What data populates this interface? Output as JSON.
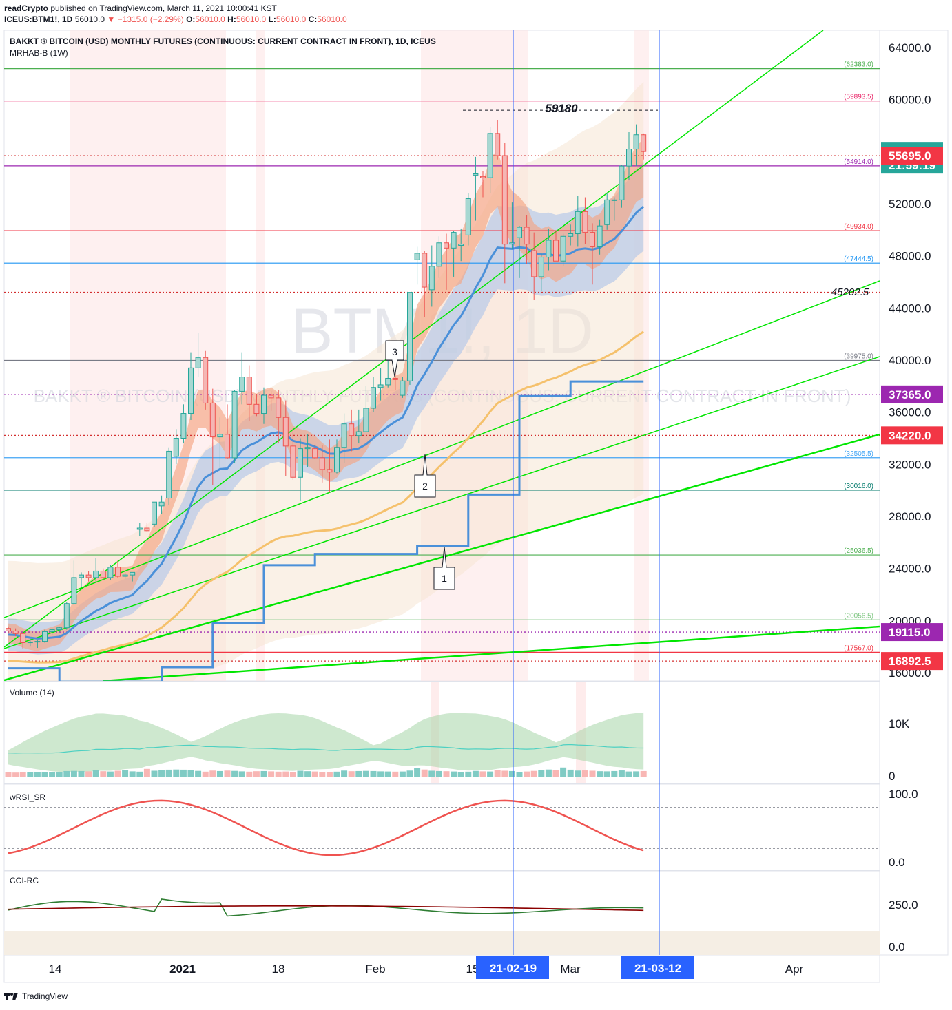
{
  "header": {
    "publisher": "readCrypto",
    "published_text": "published on TradingView.com, March 11, 2021 10:00:41 KST",
    "symbol_line": "ICEUS:BTM1!, 1D",
    "last": "56010.0",
    "change": "−1315.0 (−2.29%)",
    "o_label": "O:",
    "o_val": "56010.0",
    "h_label": "H:",
    "h_val": "56010.0",
    "l_label": "L:",
    "l_val": "56010.0",
    "c_label": "C:",
    "c_val": "56010.0"
  },
  "chart": {
    "legend_title": "BAKKT ® BITCOIN (USD) MONTHLY FUTURES (CONTINUOUS: CURRENT CONTRACT IN FRONT), 1D, ICEUS",
    "legend_indicator": "MRHAB-B (1W)",
    "watermark_symbol": "BTM1!, 1D",
    "watermark_desc": "BAKKT ® BITCOIN (USD) MONTHLY FUTURES (CONTINUOUS: CURRENT CONTRACT IN FRONT)",
    "annotation_top": "59180",
    "annotation_mid": "45202.5",
    "callouts": [
      "1",
      "2",
      "3"
    ]
  },
  "chart_data": {
    "type": "candlestick",
    "y_range": [
      15300,
      65000
    ],
    "y_ticks": [
      "64000.0",
      "60000.0",
      "52000.0",
      "48000.0",
      "44000.0",
      "40000.0",
      "36000.0",
      "32000.0",
      "28000.0",
      "24000.0",
      "20000.0",
      "16000.0"
    ],
    "y_tick_values": [
      64000,
      60000,
      52000,
      48000,
      44000,
      40000,
      36000,
      32000,
      28000,
      24000,
      20000,
      16000
    ],
    "x_labels": [
      "14",
      "2021",
      "18",
      "Feb",
      "15",
      "Mar",
      "Apr"
    ],
    "x_marker_labels": [
      "21-02-19",
      "21-03-12"
    ],
    "price_labels": [
      {
        "text": "56010.0",
        "sub": "21:59:19",
        "value": 56010,
        "color": "#26a69a"
      },
      {
        "text": "55695.0",
        "value": 55695,
        "color": "#f23645"
      },
      {
        "text": "37365.0",
        "value": 37365,
        "color": "#9c27b0"
      },
      {
        "text": "34220.0",
        "value": 34220,
        "color": "#f23645"
      },
      {
        "text": "19115.0",
        "value": 19115,
        "color": "#9c27b0"
      },
      {
        "text": "16892.5",
        "value": 16892.5,
        "color": "#f23645"
      }
    ],
    "hlines": [
      {
        "label": "(62383.0)",
        "value": 62383,
        "color": "#4caf50"
      },
      {
        "label": "(59893.5)",
        "value": 59893.5,
        "color": "#e91e63"
      },
      {
        "label": "(54914.0)",
        "value": 54914,
        "color": "#9c27b0"
      },
      {
        "label": "(49934.0)",
        "value": 49934,
        "color": "#f23645"
      },
      {
        "label": "(47444.5)",
        "value": 47444.5,
        "color": "#2196f3"
      },
      {
        "label": "(39975.0)",
        "value": 39975,
        "color": "#787b86"
      },
      {
        "label": "(32505.5)",
        "value": 32505.5,
        "color": "#42a5f5"
      },
      {
        "label": "(30016.0)",
        "value": 30016,
        "color": "#00796b"
      },
      {
        "label": "(25036.5)",
        "value": 25036.5,
        "color": "#4caf50"
      },
      {
        "label": "(20056.5)",
        "value": 20056.5,
        "color": "#81c784"
      },
      {
        "label": "(17567.0)",
        "value": 17567,
        "color": "#f23645"
      }
    ],
    "dotted_lines": [
      55695,
      45202.5,
      37365,
      34220,
      19115,
      16892.5
    ],
    "candles": [
      [
        19400,
        19550,
        19000,
        19200
      ],
      [
        19200,
        19400,
        18800,
        19000
      ],
      [
        19000,
        19100,
        17800,
        18300
      ],
      [
        18300,
        18600,
        18000,
        18350
      ],
      [
        18350,
        18500,
        17900,
        18400
      ],
      [
        18400,
        19300,
        18300,
        19150
      ],
      [
        19150,
        19400,
        18900,
        19300
      ],
      [
        19300,
        19500,
        19100,
        19450
      ],
      [
        19450,
        21400,
        19300,
        21300
      ],
      [
        21300,
        24600,
        21200,
        23300
      ],
      [
        23300,
        23700,
        22600,
        23500
      ],
      [
        23500,
        23800,
        23000,
        23300
      ],
      [
        23300,
        24800,
        22900,
        23800
      ],
      [
        23800,
        24000,
        23100,
        23300
      ],
      [
        23300,
        24300,
        23100,
        24100
      ],
      [
        24100,
        24600,
        23300,
        23400
      ],
      [
        23400,
        23700,
        23200,
        23500
      ],
      [
        23500,
        23700,
        23000,
        23700
      ],
      [
        27000,
        27500,
        26500,
        27100
      ],
      [
        27100,
        27500,
        26800,
        26900
      ],
      [
        27400,
        29100,
        27200,
        29100
      ],
      [
        28800,
        29600,
        28200,
        29100
      ],
      [
        29400,
        33300,
        28900,
        33000
      ],
      [
        32600,
        34700,
        32000,
        34000
      ],
      [
        34000,
        36600,
        33600,
        35900
      ],
      [
        35900,
        40600,
        35400,
        39400
      ],
      [
        39400,
        42100,
        38700,
        40200
      ],
      [
        40200,
        40700,
        36200,
        36700
      ],
      [
        36700,
        37800,
        30400,
        34100
      ],
      [
        34100,
        35600,
        31500,
        34300
      ],
      [
        34300,
        36600,
        32400,
        32500
      ],
      [
        32500,
        37700,
        32100,
        37600
      ],
      [
        37600,
        40600,
        36600,
        38700
      ],
      [
        38700,
        39600,
        35300,
        36600
      ],
      [
        36600,
        37400,
        35700,
        35900
      ],
      [
        35900,
        37900,
        35100,
        37300
      ],
      [
        37300,
        37600,
        36100,
        37100
      ],
      [
        37100,
        37700,
        33600,
        35600
      ],
      [
        35600,
        36900,
        31100,
        33400
      ],
      [
        33400,
        34800,
        30800,
        31000
      ],
      [
        31000,
        34000,
        29200,
        33200
      ],
      [
        33200,
        34300,
        31800,
        33300
      ],
      [
        33200,
        33500,
        32400,
        32500
      ],
      [
        32500,
        33500,
        30600,
        31600
      ],
      [
        31600,
        33900,
        29900,
        31400
      ],
      [
        31400,
        33900,
        31300,
        33300
      ],
      [
        33300,
        35900,
        32100,
        35100
      ],
      [
        35100,
        36200,
        33000,
        34200
      ],
      [
        34200,
        36200,
        33600,
        34500
      ],
      [
        34500,
        38000,
        34500,
        36300
      ],
      [
        36300,
        38700,
        36000,
        37900
      ],
      [
        37900,
        39400,
        36900,
        38100
      ],
      [
        38100,
        40000,
        37900,
        38600
      ],
      [
        38600,
        39700,
        37700,
        38500
      ],
      [
        37300,
        38700,
        37100,
        38400
      ],
      [
        38400,
        45200,
        38100,
        45200
      ],
      [
        47700,
        48700,
        45800,
        48200
      ],
      [
        48200,
        48400,
        43300,
        45600
      ],
      [
        45400,
        48800,
        44100,
        47200
      ],
      [
        47200,
        49500,
        46300,
        49000
      ],
      [
        49000,
        49700,
        45400,
        48600
      ],
      [
        48600,
        49900,
        46400,
        49800
      ],
      [
        48800,
        50100,
        47600,
        48900
      ],
      [
        49600,
        52800,
        48800,
        52400
      ],
      [
        54200,
        55600,
        50700,
        54300
      ],
      [
        54100,
        54500,
        52500,
        54000
      ],
      [
        54000,
        57900,
        52800,
        57400
      ],
      [
        57400,
        58400,
        55400,
        55700
      ],
      [
        55700,
        56700,
        45900,
        48900
      ],
      [
        48900,
        52100,
        48500,
        49000
      ],
      [
        49400,
        50300,
        46300,
        50200
      ],
      [
        50200,
        51100,
        47400,
        48900
      ],
      [
        48400,
        49800,
        44600,
        46400
      ],
      [
        46400,
        48200,
        45300,
        47900
      ],
      [
        47900,
        50100,
        46900,
        49200
      ],
      [
        49200,
        49900,
        47600,
        47600
      ],
      [
        47600,
        49700,
        47200,
        49500
      ],
      [
        49500,
        50400,
        48800,
        49700
      ],
      [
        49700,
        52600,
        48700,
        51400
      ],
      [
        51400,
        52500,
        48900,
        49800
      ],
      [
        49800,
        50500,
        45800,
        48700
      ],
      [
        48700,
        50800,
        48100,
        50300
      ],
      [
        50400,
        52800,
        50000,
        52300
      ],
      [
        52300,
        52500,
        50700,
        52300
      ],
      [
        52300,
        55000,
        51700,
        54900
      ],
      [
        54900,
        57500,
        53800,
        56200
      ],
      [
        56200,
        58100,
        54900,
        57300
      ],
      [
        57300,
        57400,
        55400,
        56010
      ]
    ],
    "series": [
      {
        "name": "MRHAB-B (1W)",
        "type": "step"
      },
      {
        "type": "ema"
      },
      {
        "type": "trend"
      }
    ]
  },
  "volume_panel": {
    "label": "Volume (14)",
    "y_ticks": [
      "10K",
      "0"
    ],
    "values": [
      2800,
      2600,
      2900,
      2800,
      2700,
      2900,
      2800,
      3100,
      3600,
      3700,
      3600,
      3400,
      4400,
      3500,
      3300,
      3800,
      4100,
      3400,
      3200,
      5000,
      3800,
      4300,
      4500,
      4600,
      4500,
      4400,
      3700,
      3200,
      3900,
      3600,
      3900,
      3700,
      3400,
      3200,
      3500,
      3600,
      3400,
      3200,
      3300,
      3100,
      3800,
      3500,
      3300,
      3000,
      2800,
      3200,
      3900,
      3500,
      3600,
      3700,
      3600,
      3400,
      3300,
      3200,
      3300,
      3900,
      5400,
      4600,
      3800,
      3600,
      3500,
      3300,
      2800,
      3200,
      3700,
      3400,
      3300,
      4100,
      3800,
      3600,
      3100,
      3300,
      3700,
      4200,
      4600,
      4300,
      5900,
      4500,
      3900,
      4000,
      3800,
      3500,
      3400,
      3600,
      4000,
      3300,
      3400,
      3600
    ]
  },
  "wrsi_panel": {
    "label": "wRSI_SR",
    "y_ticks": [
      "100.0",
      "0.0"
    ]
  },
  "cci_panel": {
    "label": "CCI-RC",
    "y_ticks": [
      "250.0",
      "0.0"
    ]
  },
  "footer": {
    "brand": "TradingView"
  }
}
